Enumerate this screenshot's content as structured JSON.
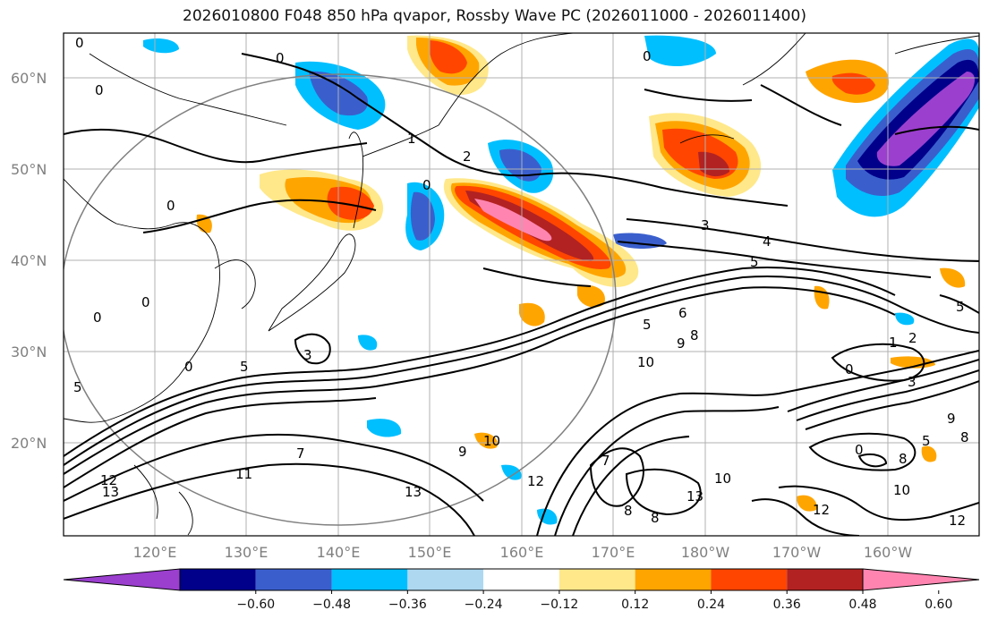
{
  "title": "2026010800 F048 850 hPa qvapor, Rossby Wave PC (2026011000 - 2026011400)",
  "map": {
    "lat_labels": [
      "60°N",
      "50°N",
      "40°N",
      "30°N",
      "20°N"
    ],
    "lon_labels": [
      "120°E",
      "130°E",
      "140°E",
      "150°E",
      "160°E",
      "170°E",
      "180°W",
      "170°W",
      "160°W"
    ],
    "gridlines": true
  },
  "colorbar": {
    "ticks": [
      "−0.60",
      "−0.48",
      "−0.36",
      "−0.24",
      "−0.12",
      "0.12",
      "0.24",
      "0.36",
      "0.48",
      "0.60"
    ],
    "colors": [
      "#9b3fcf",
      "#00008b",
      "#3a5fcd",
      "#00bfff",
      "#add8f0",
      "#ffffff",
      "#ffe88a",
      "#ffa500",
      "#ff4500",
      "#b22222",
      "#ff85b0"
    ],
    "extend": "both"
  },
  "contour_labels": [
    "0",
    "0",
    "0",
    "0",
    "0",
    "0",
    "0",
    "1",
    "2",
    "0",
    "3",
    "4",
    "5",
    "5",
    "6",
    "9",
    "8",
    "10",
    "5",
    "3",
    "5",
    "7",
    "11",
    "13",
    "12",
    "13",
    "9",
    "10",
    "12",
    "10",
    "7",
    "8",
    "8",
    "13",
    "10",
    "12",
    "12",
    "1",
    "2",
    "0",
    "3",
    "9",
    "8",
    "8",
    "5",
    "5",
    "0",
    "0"
  ]
}
